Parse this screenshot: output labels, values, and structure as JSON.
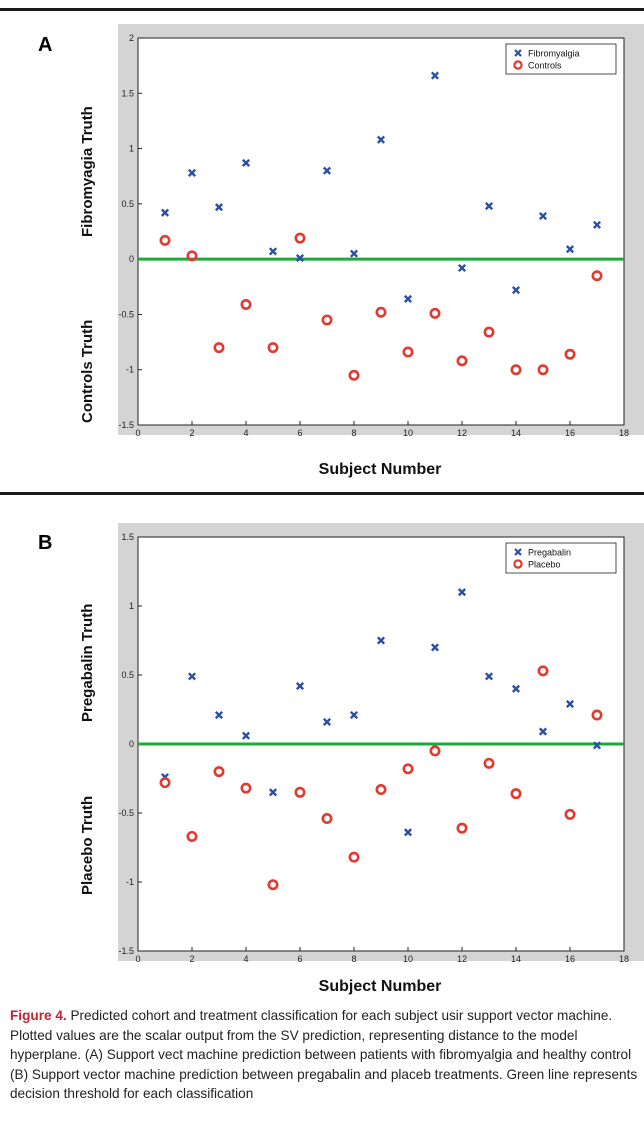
{
  "chart_data": [
    {
      "type": "scatter",
      "panel_label": "A",
      "xlabel": "Subject Number",
      "ylabel_top": "Fibromyagia Truth",
      "ylabel_bottom": "Controls Truth",
      "xlim": [
        0,
        18
      ],
      "ylim": [
        -1.5,
        2
      ],
      "xticks": [
        0,
        2,
        4,
        6,
        8,
        10,
        12,
        14,
        16,
        18
      ],
      "yticks": [
        -1.5,
        -1,
        -0.5,
        0,
        0.5,
        1,
        1.5,
        2
      ],
      "ytick_labels": [
        "-1.5",
        "-1",
        "-0.5",
        "0",
        "0.5",
        "1",
        "1.5",
        "2"
      ],
      "threshold": 0,
      "threshold_color": "#1fa83a",
      "legend_position": "top-right",
      "series": [
        {
          "name": "Fibromyalgia",
          "marker": "x",
          "color": "#2b50a8",
          "x": [
            1,
            2,
            3,
            4,
            5,
            6,
            7,
            8,
            9,
            10,
            11,
            12,
            13,
            14,
            15,
            16,
            17
          ],
          "y": [
            0.42,
            0.78,
            0.47,
            0.87,
            0.07,
            0.01,
            0.8,
            0.05,
            1.08,
            -0.36,
            1.66,
            -0.08,
            0.48,
            -0.28,
            0.39,
            0.09,
            0.31
          ]
        },
        {
          "name": "Controls",
          "marker": "o",
          "color": "#e23a2f",
          "x": [
            1,
            2,
            3,
            4,
            5,
            6,
            7,
            8,
            9,
            10,
            11,
            12,
            13,
            14,
            15,
            16,
            17
          ],
          "y": [
            0.17,
            0.03,
            -0.8,
            -0.41,
            -0.8,
            0.19,
            -0.55,
            -1.05,
            -0.48,
            -0.84,
            -0.49,
            -0.92,
            -0.66,
            -1.0,
            -1.0,
            -0.86,
            -0.15
          ]
        }
      ]
    },
    {
      "type": "scatter",
      "panel_label": "B",
      "xlabel": "Subject Number",
      "ylabel_top": "Pregabalin Truth",
      "ylabel_bottom": "Placebo Truth",
      "xlim": [
        0,
        18
      ],
      "ylim": [
        -1.5,
        1.5
      ],
      "xticks": [
        0,
        2,
        4,
        6,
        8,
        10,
        12,
        14,
        16,
        18
      ],
      "yticks": [
        -1.5,
        -1,
        -0.5,
        0,
        0.5,
        1,
        1.5
      ],
      "ytick_labels": [
        "-1.5",
        "-1",
        "-0.5",
        "0",
        "0.5",
        "1",
        "1.5"
      ],
      "threshold": 0,
      "threshold_color": "#1fa83a",
      "legend_position": "top-right",
      "series": [
        {
          "name": "Pregabalin",
          "marker": "x",
          "color": "#2b50a8",
          "x": [
            1,
            2,
            3,
            4,
            5,
            6,
            7,
            8,
            9,
            10,
            11,
            12,
            13,
            14,
            15,
            16,
            17
          ],
          "y": [
            -0.24,
            0.49,
            0.21,
            0.06,
            -0.35,
            0.42,
            0.16,
            0.21,
            0.75,
            -0.64,
            0.7,
            1.1,
            0.49,
            0.4,
            0.09,
            0.29,
            -0.01
          ]
        },
        {
          "name": "Placebo",
          "marker": "o",
          "color": "#e23a2f",
          "x": [
            1,
            2,
            3,
            4,
            5,
            6,
            7,
            8,
            9,
            10,
            11,
            12,
            13,
            14,
            15,
            16,
            17
          ],
          "y": [
            -0.28,
            -0.67,
            -0.2,
            -0.32,
            -1.02,
            -0.35,
            -0.54,
            -0.82,
            -0.33,
            -0.18,
            -0.05,
            -0.61,
            -0.14,
            -0.36,
            0.53,
            -0.51,
            0.21
          ]
        }
      ]
    }
  ],
  "caption": {
    "figure_label": "Figure 4.",
    "text": "Predicted cohort and treatment classification for each subject usir support vector machine. Plotted values are the scalar output from the SV prediction, representing distance to the model hyperplane. (A) Support vect machine prediction between patients with fibromyalgia and healthy control (B) Support vector machine prediction between pregabalin and placeb treatments. Green line represents decision threshold for each classification"
  }
}
